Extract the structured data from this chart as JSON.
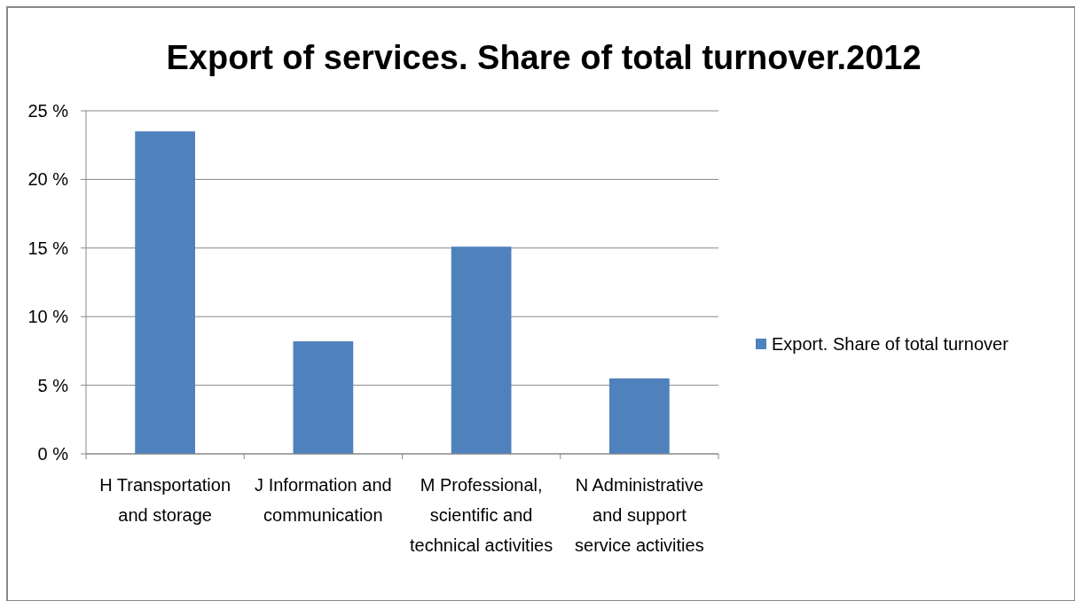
{
  "chart_data": {
    "type": "bar",
    "title": "Export of services. Share of total turnover.2012",
    "categories": [
      "H Transportation and storage",
      "J Information and communication",
      "M Professional, scientific and technical activities",
      "N Administrative and support service activities"
    ],
    "series": [
      {
        "name": "Export. Share of total turnover",
        "color": "#4f81bd",
        "values": [
          23.5,
          8.2,
          15.1,
          5.5
        ]
      }
    ],
    "ylim": [
      0,
      25
    ],
    "yticks": [
      {
        "value": 0,
        "label": "0 %"
      },
      {
        "value": 5,
        "label": "5 %"
      },
      {
        "value": 10,
        "label": "10 %"
      },
      {
        "value": 15,
        "label": "15 %"
      },
      {
        "value": 20,
        "label": "20 %"
      },
      {
        "value": 25,
        "label": "25 %"
      }
    ],
    "grid": "y",
    "legend": "right"
  }
}
